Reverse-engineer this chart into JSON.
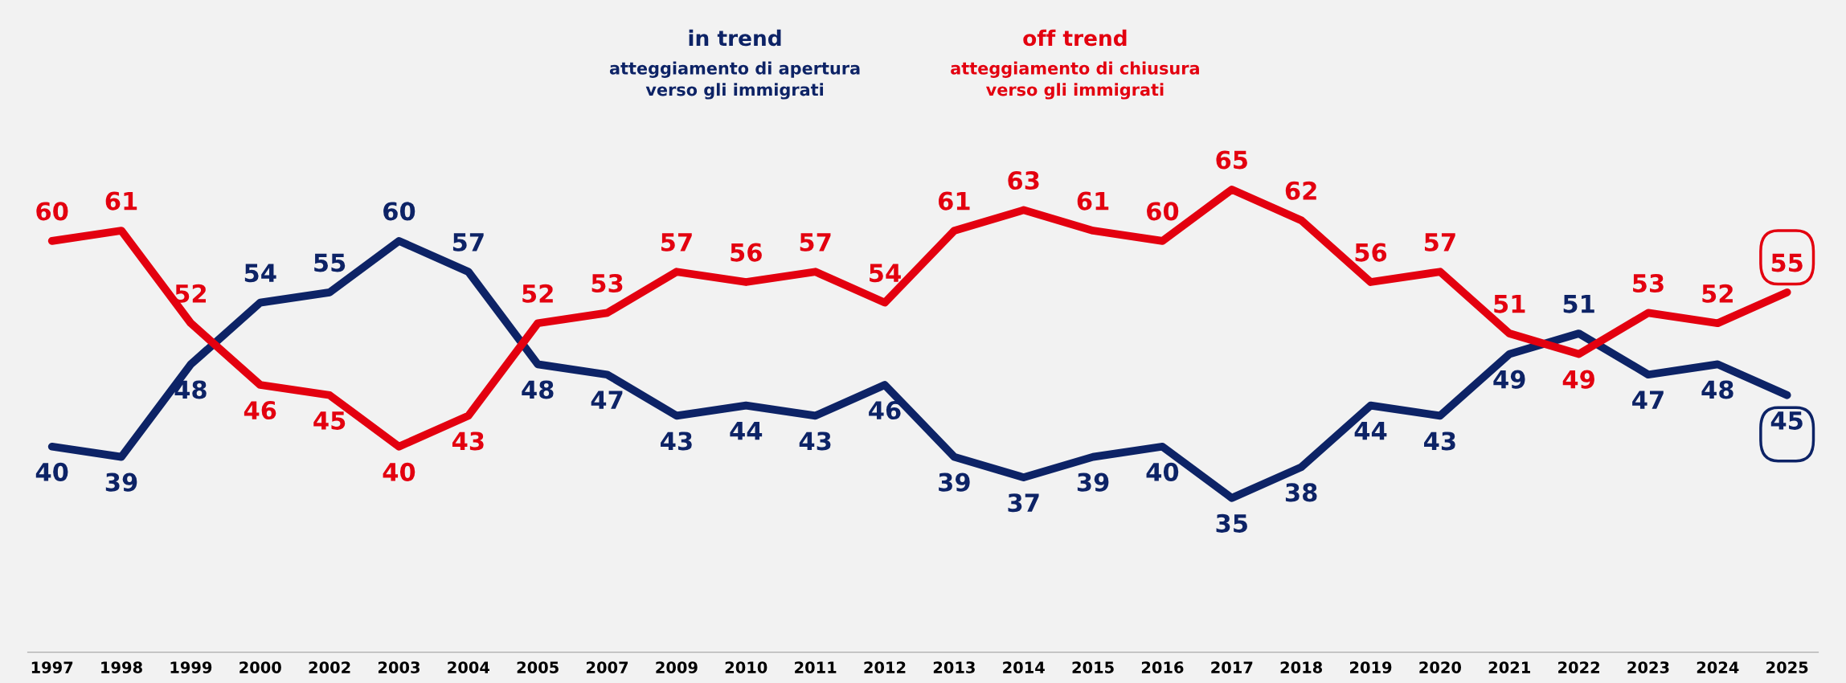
{
  "chart_data": {
    "type": "line",
    "categories": [
      "1997",
      "1998",
      "1999",
      "2000",
      "2002",
      "2003",
      "2004",
      "2005",
      "2007",
      "2009",
      "2010",
      "2011",
      "2012",
      "2013",
      "2014",
      "2015",
      "2016",
      "2017",
      "2018",
      "2019",
      "2020",
      "2021",
      "2022",
      "2023",
      "2024",
      "2025"
    ],
    "series": [
      {
        "name": "in trend\natteggiamento di apertura\nverso gli immigrati",
        "color": "#0d2366",
        "values": [
          40,
          39,
          48,
          54,
          55,
          60,
          57,
          48,
          47,
          43,
          44,
          43,
          46,
          39,
          37,
          39,
          40,
          35,
          38,
          44,
          43,
          49,
          51,
          47,
          48,
          45
        ]
      },
      {
        "name": "off trend\natteggiamento di chiusura\nverso gli immigrati",
        "color": "#e3000f",
        "values": [
          60,
          61,
          52,
          46,
          45,
          40,
          43,
          52,
          53,
          57,
          56,
          57,
          54,
          61,
          63,
          61,
          60,
          65,
          62,
          56,
          57,
          51,
          49,
          53,
          52,
          55
        ]
      }
    ],
    "data_labels": true,
    "legend": false,
    "grid": false,
    "marker": "none",
    "line_style": "solid"
  }
}
